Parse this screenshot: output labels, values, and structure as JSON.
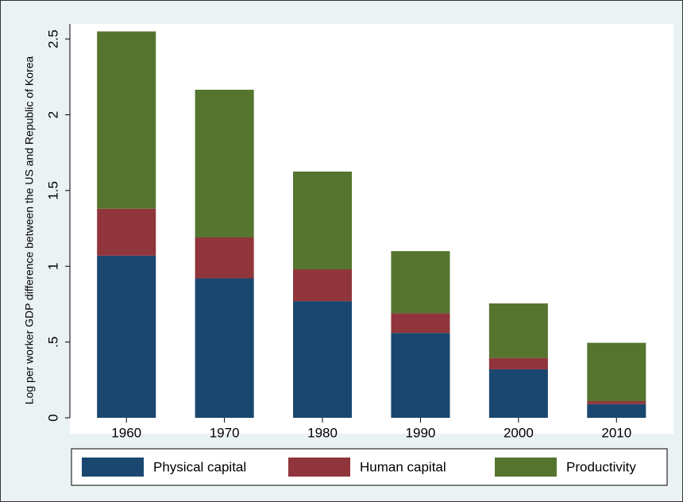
{
  "chart_data": {
    "type": "stacked-bar",
    "y_label": "Log per worker GDP difference between the US and Republic of Korea",
    "categories": [
      "1960",
      "1970",
      "1980",
      "1990",
      "2000",
      "2010"
    ],
    "series": [
      {
        "name": "Physical capital",
        "color": "#1a476f",
        "values": [
          1.07,
          0.92,
          0.77,
          0.56,
          0.32,
          0.09
        ]
      },
      {
        "name": "Human capital",
        "color": "#90353b",
        "values": [
          0.31,
          0.27,
          0.21,
          0.13,
          0.075,
          0.02
        ]
      },
      {
        "name": "Productivity",
        "color": "#55752f",
        "values": [
          1.17,
          0.975,
          0.645,
          0.41,
          0.36,
          0.385
        ]
      }
    ],
    "ylim": [
      0,
      2.6
    ],
    "yticks": [
      0,
      {
        "value": 0.5,
        "label": ".5"
      },
      1,
      1.5,
      2,
      2.5
    ]
  }
}
